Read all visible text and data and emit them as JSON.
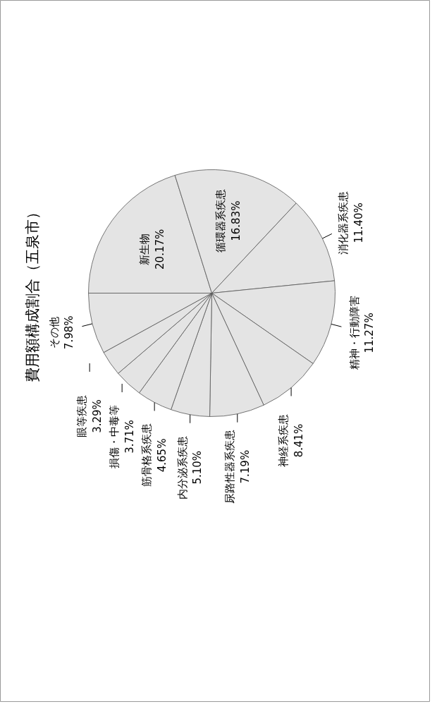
{
  "chart_data": {
    "type": "pie",
    "title": "費用額構成割合（五泉市）",
    "categories": [
      "新生物",
      "循環器系疾患",
      "消化器系疾患",
      "精神・行動障害",
      "神経系疾患",
      "尿路性器系疾患",
      "内分泌系疾患",
      "筋骨格系疾患",
      "損傷・中毒等",
      "眼等疾患",
      "その他"
    ],
    "values": [
      20.17,
      16.83,
      11.4,
      11.27,
      8.41,
      7.19,
      5.1,
      4.65,
      3.71,
      3.29,
      7.98
    ],
    "value_labels": [
      "20.17%",
      "16.83%",
      "11.40%",
      "11.27%",
      "8.41%",
      "7.19%",
      "5.10%",
      "4.65%",
      "3.71%",
      "3.29%",
      "7.98%"
    ],
    "colors": [
      "#e4e4e4",
      "#e4e4e4",
      "#e4e4e4",
      "#e4e4e4",
      "#e4e4e4",
      "#e4e4e4",
      "#e4e4e4",
      "#e4e4e4",
      "#e4e4e4",
      "#e4e4e4",
      "#e4e4e4"
    ]
  }
}
